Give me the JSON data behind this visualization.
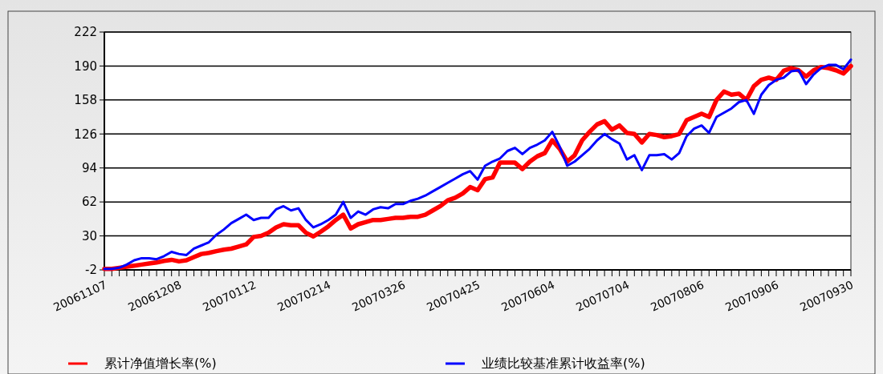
{
  "chart_data": {
    "type": "line",
    "categories": [
      "20061107",
      null,
      null,
      null,
      null,
      null,
      null,
      null,
      null,
      null,
      "20061208",
      null,
      null,
      null,
      null,
      null,
      null,
      null,
      null,
      null,
      "20070112",
      null,
      null,
      null,
      null,
      null,
      null,
      null,
      null,
      null,
      "20070214",
      null,
      null,
      null,
      null,
      null,
      null,
      null,
      null,
      null,
      "20070326",
      null,
      null,
      null,
      null,
      null,
      null,
      null,
      null,
      null,
      "20070425",
      null,
      null,
      null,
      null,
      null,
      null,
      null,
      null,
      null,
      "20070604",
      null,
      null,
      null,
      null,
      null,
      null,
      null,
      null,
      null,
      "20070704",
      null,
      null,
      null,
      null,
      null,
      null,
      null,
      null,
      null,
      "20070806",
      null,
      null,
      null,
      null,
      null,
      null,
      null,
      null,
      null,
      "20070906",
      null,
      null,
      null,
      null,
      null,
      null,
      null,
      null,
      null,
      "20070930"
    ],
    "series": [
      {
        "name": "累计净值增长率(%)",
        "color": "#ff0000",
        "values": [
          -1,
          -1,
          0,
          1,
          2,
          3,
          4,
          5,
          6.5,
          7.5,
          6,
          7,
          10,
          13,
          14,
          15.6,
          17,
          18,
          20,
          22,
          29,
          30,
          33,
          38,
          41,
          40,
          40,
          33,
          29.5,
          34,
          39,
          45,
          50,
          37,
          41,
          43,
          45,
          45,
          46,
          47,
          47,
          48,
          48,
          50,
          54,
          58,
          63.5,
          66,
          70,
          76,
          73,
          83.5,
          85,
          99,
          99,
          99,
          93,
          100,
          105,
          108,
          120,
          112,
          100,
          106,
          120,
          128,
          135,
          138,
          130,
          134,
          127,
          126,
          118,
          126,
          125,
          123,
          124,
          126,
          139,
          142,
          145,
          142,
          158,
          166,
          163,
          164,
          158,
          171,
          177,
          179,
          177,
          185.5,
          188,
          186,
          180,
          186,
          189,
          188,
          186,
          183,
          190
        ]
      },
      {
        "name": "业绩比较基准累计收益率(%)",
        "color": "#0000ff",
        "values": [
          -1,
          -1,
          0,
          3,
          7,
          9,
          9,
          8,
          11,
          15,
          13,
          12,
          18,
          21,
          24,
          31,
          36,
          42,
          46,
          50,
          45,
          47,
          47,
          55,
          58,
          54,
          56,
          45,
          38,
          41,
          45,
          50,
          62,
          47,
          53,
          50,
          55,
          57,
          56,
          60,
          60,
          63,
          65,
          68,
          72,
          76,
          80,
          84,
          88,
          91,
          83,
          96,
          100,
          103,
          110,
          113,
          107,
          113,
          116,
          120,
          128,
          114,
          96,
          100,
          106,
          112,
          120,
          126,
          121,
          117,
          102,
          106,
          92,
          106,
          106,
          107,
          102,
          108,
          124,
          131,
          134,
          127,
          142,
          146,
          150,
          156,
          158,
          145,
          163,
          172,
          177,
          179,
          185,
          186,
          173,
          182,
          188,
          191,
          191,
          187,
          196
        ]
      }
    ],
    "ylim": [
      -2,
      222
    ],
    "yticks": [
      -2,
      30,
      62,
      94,
      126,
      158,
      190,
      222
    ],
    "grid": "y",
    "legend": "bottom",
    "line_style": "solid",
    "marker": "none"
  }
}
